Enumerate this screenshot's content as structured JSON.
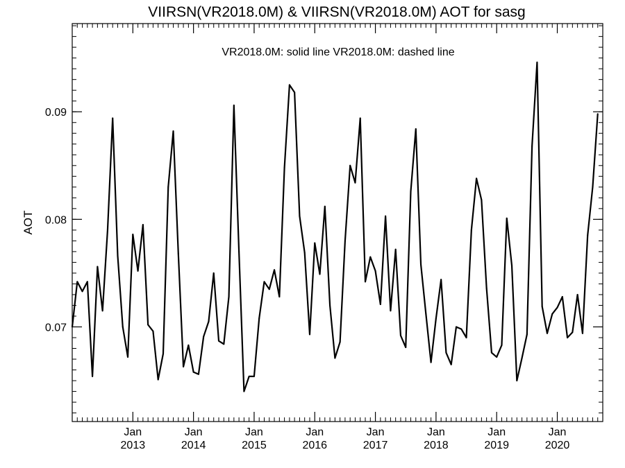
{
  "chart_data": {
    "type": "line",
    "title": "VIIRSN(VR2018.0M) & VIIRSN(VR2018.0M)  AOT for sasg",
    "annotation": "VR2018.0M: solid line   VR2018.0M: dashed line",
    "xlabel": "",
    "ylabel": "AOT",
    "xlim": [
      "2012-01",
      "2020-10"
    ],
    "ylim": [
      0.0612,
      0.0982
    ],
    "y_ticks": [
      {
        "value": 0.07,
        "label": "0.07"
      },
      {
        "value": 0.08,
        "label": "0.08"
      },
      {
        "value": 0.09,
        "label": "0.09"
      }
    ],
    "y_minor_step": 0.001,
    "x_ticks": [
      {
        "date": "2013-01",
        "month": "Jan",
        "year": "2013"
      },
      {
        "date": "2014-01",
        "month": "Jan",
        "year": "2014"
      },
      {
        "date": "2015-01",
        "month": "Jan",
        "year": "2015"
      },
      {
        "date": "2016-01",
        "month": "Jan",
        "year": "2016"
      },
      {
        "date": "2017-01",
        "month": "Jan",
        "year": "2017"
      },
      {
        "date": "2018-01",
        "month": "Jan",
        "year": "2018"
      },
      {
        "date": "2019-01",
        "month": "Jan",
        "year": "2019"
      },
      {
        "date": "2020-01",
        "month": "Jan",
        "year": "2020"
      }
    ],
    "grid": false,
    "series": [
      {
        "style": "solid",
        "color": "#000000",
        "points": [
          [
            "2012-01",
            0.07
          ],
          [
            "2012-02",
            0.0742
          ],
          [
            "2012-03",
            0.0733
          ],
          [
            "2012-04",
            0.0742
          ],
          [
            "2012-05",
            0.0654
          ],
          [
            "2012-06",
            0.0756
          ],
          [
            "2012-07",
            0.0715
          ],
          [
            "2012-08",
            0.079
          ],
          [
            "2012-09",
            0.0894
          ],
          [
            "2012-10",
            0.0766
          ],
          [
            "2012-11",
            0.07
          ],
          [
            "2012-12",
            0.0672
          ],
          [
            "2013-01",
            0.0786
          ],
          [
            "2013-02",
            0.0752
          ],
          [
            "2013-03",
            0.0795
          ],
          [
            "2013-04",
            0.0702
          ],
          [
            "2013-05",
            0.0696
          ],
          [
            "2013-06",
            0.0651
          ],
          [
            "2013-07",
            0.0675
          ],
          [
            "2013-08",
            0.083
          ],
          [
            "2013-09",
            0.0882
          ],
          [
            "2013-10",
            0.0768
          ],
          [
            "2013-11",
            0.0663
          ],
          [
            "2013-12",
            0.0683
          ],
          [
            "2014-01",
            0.0658
          ],
          [
            "2014-02",
            0.0656
          ],
          [
            "2014-03",
            0.0691
          ],
          [
            "2014-04",
            0.0705
          ],
          [
            "2014-05",
            0.075
          ],
          [
            "2014-06",
            0.0687
          ],
          [
            "2014-07",
            0.0684
          ],
          [
            "2014-08",
            0.0728
          ],
          [
            "2014-09",
            0.0906
          ],
          [
            "2014-10",
            0.077
          ],
          [
            "2014-11",
            0.064
          ],
          [
            "2014-12",
            0.0654
          ],
          [
            "2015-01",
            0.0654
          ],
          [
            "2015-02",
            0.0708
          ],
          [
            "2015-03",
            0.0742
          ],
          [
            "2015-04",
            0.0735
          ],
          [
            "2015-05",
            0.0753
          ],
          [
            "2015-06",
            0.0728
          ],
          [
            "2015-07",
            0.0848
          ],
          [
            "2015-08",
            0.0925
          ],
          [
            "2015-09",
            0.0918
          ],
          [
            "2015-10",
            0.0803
          ],
          [
            "2015-11",
            0.0769
          ],
          [
            "2015-12",
            0.0693
          ],
          [
            "2016-01",
            0.0778
          ],
          [
            "2016-02",
            0.0749
          ],
          [
            "2016-03",
            0.0812
          ],
          [
            "2016-04",
            0.072
          ],
          [
            "2016-05",
            0.0671
          ],
          [
            "2016-06",
            0.0686
          ],
          [
            "2016-07",
            0.078
          ],
          [
            "2016-08",
            0.085
          ],
          [
            "2016-09",
            0.0834
          ],
          [
            "2016-10",
            0.0894
          ],
          [
            "2016-11",
            0.0742
          ],
          [
            "2016-12",
            0.0765
          ],
          [
            "2017-01",
            0.0752
          ],
          [
            "2017-02",
            0.0721
          ],
          [
            "2017-03",
            0.0803
          ],
          [
            "2017-04",
            0.0715
          ],
          [
            "2017-05",
            0.0772
          ],
          [
            "2017-06",
            0.0692
          ],
          [
            "2017-07",
            0.0681
          ],
          [
            "2017-08",
            0.0826
          ],
          [
            "2017-09",
            0.0884
          ],
          [
            "2017-10",
            0.0758
          ],
          [
            "2017-11",
            0.0712
          ],
          [
            "2017-12",
            0.0667
          ],
          [
            "2018-01",
            0.0708
          ],
          [
            "2018-02",
            0.0744
          ],
          [
            "2018-03",
            0.0676
          ],
          [
            "2018-04",
            0.0665
          ],
          [
            "2018-05",
            0.07
          ],
          [
            "2018-06",
            0.0698
          ],
          [
            "2018-07",
            0.069
          ],
          [
            "2018-08",
            0.079
          ],
          [
            "2018-09",
            0.0838
          ],
          [
            "2018-10",
            0.0818
          ],
          [
            "2018-11",
            0.0736
          ],
          [
            "2018-12",
            0.0676
          ],
          [
            "2019-01",
            0.0672
          ],
          [
            "2019-02",
            0.0683
          ],
          [
            "2019-03",
            0.0801
          ],
          [
            "2019-04",
            0.0757
          ],
          [
            "2019-05",
            0.065
          ],
          [
            "2019-06",
            0.0671
          ],
          [
            "2019-07",
            0.0693
          ],
          [
            "2019-08",
            0.0868
          ],
          [
            "2019-09",
            0.0946
          ],
          [
            "2019-10",
            0.0719
          ],
          [
            "2019-11",
            0.0694
          ],
          [
            "2019-12",
            0.0712
          ],
          [
            "2020-01",
            0.0718
          ],
          [
            "2020-02",
            0.0728
          ],
          [
            "2020-03",
            0.069
          ],
          [
            "2020-04",
            0.0695
          ],
          [
            "2020-05",
            0.073
          ],
          [
            "2020-06",
            0.0694
          ],
          [
            "2020-07",
            0.0785
          ],
          [
            "2020-08",
            0.083
          ],
          [
            "2020-09",
            0.0898
          ]
        ]
      }
    ]
  }
}
